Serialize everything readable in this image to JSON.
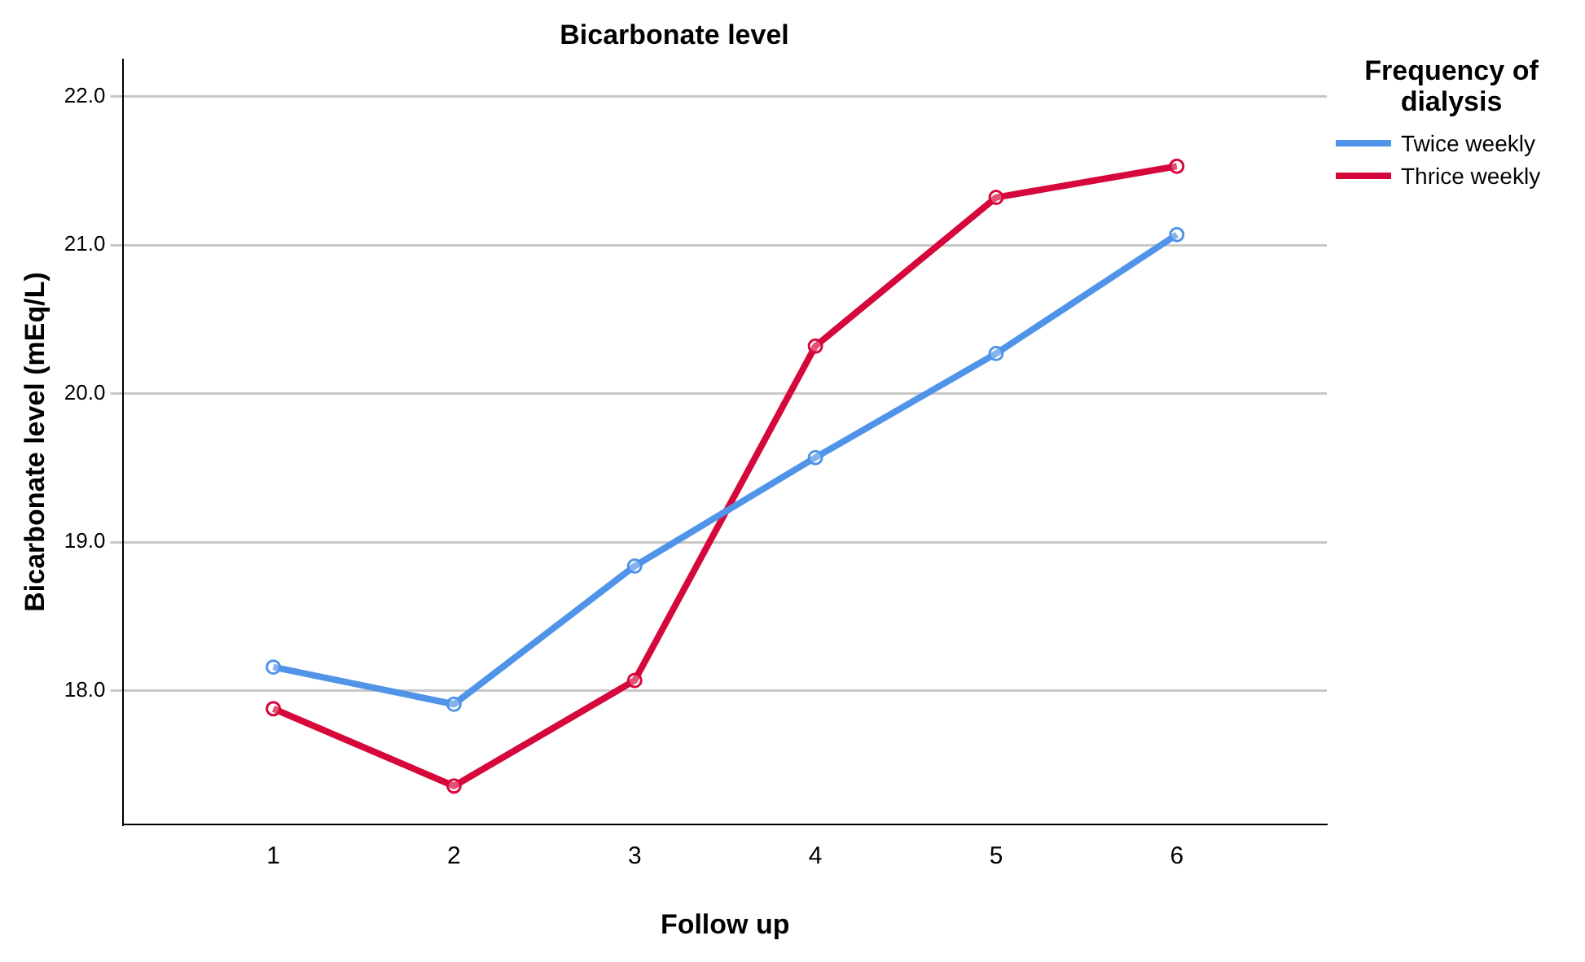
{
  "chart_data": {
    "type": "line",
    "title": "Bicarbonate level",
    "xlabel": "Follow up",
    "ylabel": "Bicarbonate level (mEq/L)",
    "legend_title": "Frequency of dialysis",
    "x": [
      1,
      2,
      3,
      4,
      5,
      6
    ],
    "series": [
      {
        "name": "Twice weekly",
        "color": "#4f94e8",
        "values": [
          18.16,
          17.91,
          18.84,
          19.57,
          20.27,
          21.07
        ]
      },
      {
        "name": "Thrice weekly",
        "color": "#d6083b",
        "values": [
          17.88,
          17.36,
          18.07,
          20.32,
          21.32,
          21.53
        ]
      }
    ],
    "xlim": [
      0.17,
      6.83
    ],
    "xticks": [
      1,
      2,
      3,
      4,
      5,
      6
    ],
    "ylim": [
      17.1,
      22.25
    ],
    "yticks": [
      {
        "value": 18,
        "label": "18.0"
      },
      {
        "value": 19,
        "label": "19.0"
      },
      {
        "value": 20,
        "label": "20.0"
      },
      {
        "value": 21,
        "label": "21.0"
      },
      {
        "value": 22,
        "label": "22.0"
      }
    ],
    "grid": "y",
    "legend": "top right",
    "marker": "circle",
    "line_style": "solid"
  }
}
